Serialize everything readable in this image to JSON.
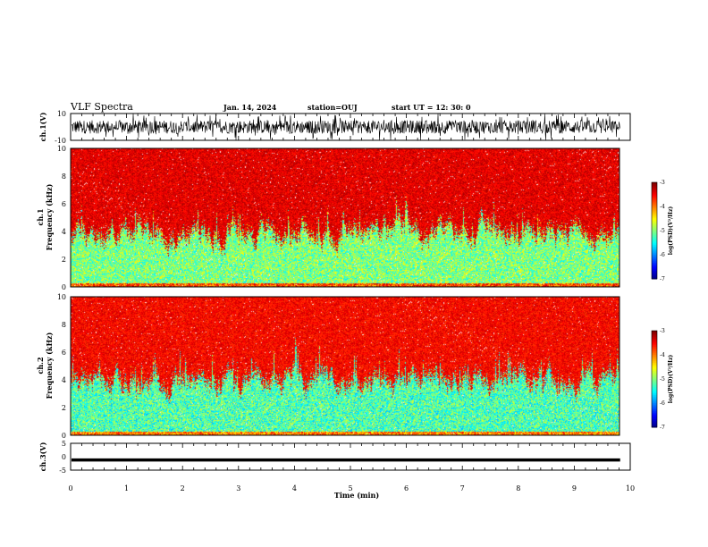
{
  "header": {
    "title": "VLF Spectra",
    "date": "Jan. 14, 2024",
    "station": "station=OUJ",
    "start_ut": "start UT =  12: 30: 0"
  },
  "chart_data": [
    {
      "type": "line",
      "name": "ch1-waveform",
      "ylabel": "ch.1(V)",
      "ylim": [
        -10,
        10
      ],
      "yticks": [
        "10",
        "-10"
      ],
      "xlim": [
        0,
        10
      ],
      "signal": "noisy waveform, typically within about -5 to 5 V with spikes"
    },
    {
      "type": "heatmap",
      "name": "ch1-spectrogram",
      "ylabel": "ch.1\nFrequency (kHz)",
      "ylabel_line1": "ch.1",
      "ylabel_line2": "Frequency (kHz)",
      "ylim": [
        0,
        10
      ],
      "yticks": [
        "0",
        "2",
        "4",
        "6",
        "8",
        "10"
      ],
      "xlim": [
        0,
        9.82
      ],
      "colorbar": {
        "label": "log(PSD)(V²/Hz)",
        "range": [
          -7,
          -3
        ],
        "ticks": [
          "-3",
          "-4",
          "-5",
          "-6",
          "-7"
        ]
      },
      "band_structure": {
        "low_kHz": [
          0,
          4
        ],
        "low_log_psd": -5,
        "high_kHz": [
          4,
          10
        ],
        "high_log_psd": -3.5
      }
    },
    {
      "type": "heatmap",
      "name": "ch2-spectrogram",
      "ylabel": "ch.2\nFrequency (kHz)",
      "ylabel_line1": "ch.2",
      "ylabel_line2": "Frequency (kHz)",
      "ylim": [
        0,
        10
      ],
      "yticks": [
        "0",
        "2",
        "4",
        "6",
        "8",
        "10"
      ],
      "xlim": [
        0,
        9.82
      ],
      "colorbar": {
        "label": "log(PSD)(V²/Hz)",
        "range": [
          -7,
          -3
        ],
        "ticks": [
          "-3",
          "-4",
          "-5",
          "-6",
          "-7"
        ]
      },
      "band_structure": {
        "low_kHz": [
          0,
          4
        ],
        "low_log_psd": -5.2,
        "high_kHz": [
          4,
          10
        ],
        "high_log_psd": -3.6
      }
    },
    {
      "type": "line",
      "name": "ch3-waveform",
      "ylabel": "ch.3(V)",
      "ylim": [
        -5,
        5
      ],
      "yticks": [
        "5",
        "0",
        "-5"
      ],
      "xlim": [
        0,
        10
      ],
      "constant_value": -1.2
    }
  ],
  "x_axis": {
    "label": "Time (min)",
    "range": [
      0,
      10
    ],
    "ticks": [
      "0",
      "1",
      "2",
      "3",
      "4",
      "5",
      "6",
      "7",
      "8",
      "9",
      "10"
    ]
  }
}
